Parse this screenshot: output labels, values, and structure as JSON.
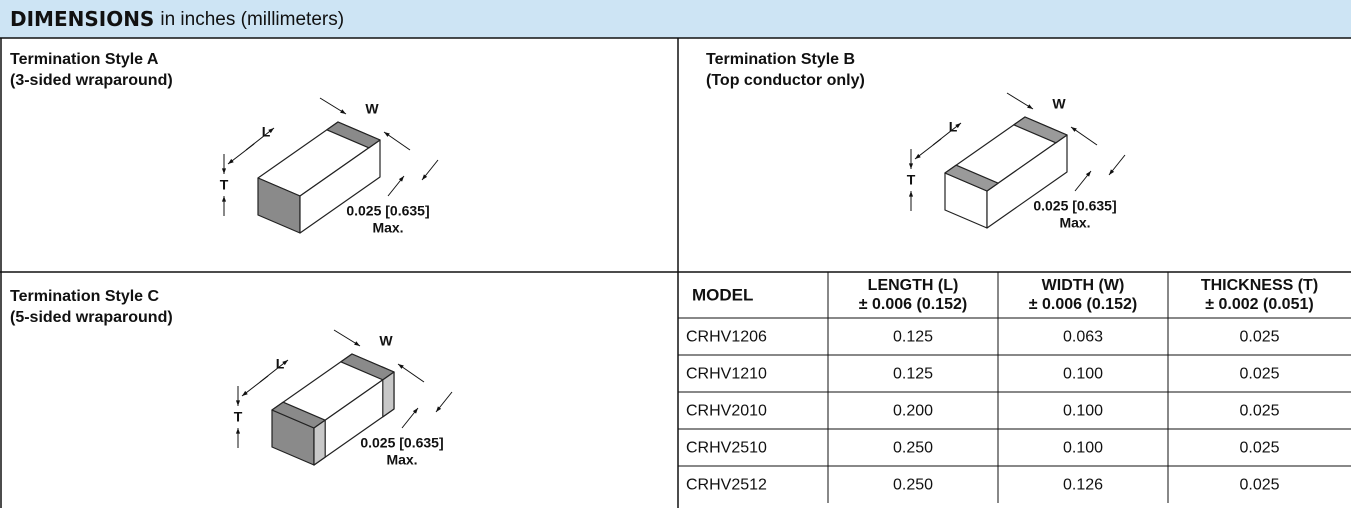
{
  "header": {
    "title": "DIMENSIONS",
    "subtitle": "in inches (millimeters)"
  },
  "styles": [
    {
      "title": "Termination Style A",
      "subtitle": "(3-sided wraparound)",
      "w": "W",
      "l": "L",
      "t": "T",
      "tolerance": "0.025 [0.635]",
      "max": "Max."
    },
    {
      "title": "Termination Style B",
      "subtitle": "(Top conductor only)",
      "w": "W",
      "l": "L",
      "t": "T",
      "tolerance": "0.025 [0.635]",
      "max": "Max."
    },
    {
      "title": "Termination Style C",
      "subtitle": "(5-sided wraparound)",
      "w": "W",
      "l": "L",
      "t": "T",
      "tolerance": "0.025 [0.635]",
      "max": "Max."
    }
  ],
  "table": {
    "headers": [
      {
        "label": "MODEL"
      },
      {
        "label": "LENGTH (L)",
        "tolerance": "± 0.006 (0.152)"
      },
      {
        "label": "WIDTH (W)",
        "tolerance": "± 0.006 (0.152)"
      },
      {
        "label": "THICKNESS (T)",
        "tolerance": "± 0.002 (0.051)"
      }
    ],
    "rows": [
      [
        "CRHV1206",
        "0.125",
        "0.063",
        "0.025"
      ],
      [
        "CRHV1210",
        "0.125",
        "0.100",
        "0.025"
      ],
      [
        "CRHV2010",
        "0.200",
        "0.100",
        "0.025"
      ],
      [
        "CRHV2510",
        "0.250",
        "0.100",
        "0.025"
      ],
      [
        "CRHV2512",
        "0.250",
        "0.126",
        "0.025"
      ]
    ]
  }
}
